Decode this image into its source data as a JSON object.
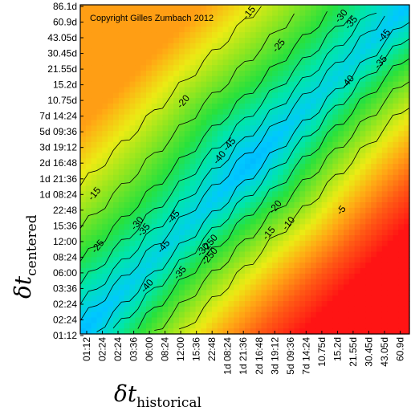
{
  "chart_data": {
    "type": "heatmap",
    "copyright": "Copyright Gilles Zumbach 2012",
    "xlabel": {
      "symbol": "δt",
      "subscript": "historical"
    },
    "ylabel": {
      "symbol": "δt",
      "subscript": "centered"
    },
    "x_ticks": [
      "01:12",
      "02:24",
      "02:24",
      "03:36",
      "06:00",
      "08:24",
      "12:00",
      "15:36",
      "22:48",
      "1d 08:24",
      "1d 21:36",
      "2d 16:48",
      "3d 19:12",
      "5d 09:36",
      "7d 14:24",
      "10.75d",
      "15.2d",
      "21.55d",
      "30.45d",
      "43.05d",
      "60.9d",
      "86.1d"
    ],
    "y_ticks": [
      "86.1d",
      "60.9d",
      "43.05d",
      "30.45d",
      "21.55d",
      "15.2d",
      "10.75d",
      "7d 14:24",
      "5d 09:36",
      "3d 19:12",
      "2d 16:48",
      "1d 21:36",
      "1d 08:24",
      "22:48",
      "15:36",
      "12:00",
      "08:24",
      "06:00",
      "03:36",
      "02:24",
      "02:24",
      "01:12"
    ],
    "contour_labels": [
      "-15",
      "-30",
      "-35",
      "-25",
      "-45",
      "-35",
      "-20",
      "-40",
      "-45",
      "-40",
      "-45",
      "-15",
      "-20",
      "-10",
      "-5",
      "-30",
      "-35",
      "-45",
      "-250",
      "-15",
      "-25",
      "-35",
      "-40",
      "-30",
      "-250"
    ],
    "color_scale": {
      "low": "#00aaff",
      "mid": "#22e000",
      "high": "#ff1010"
    }
  }
}
